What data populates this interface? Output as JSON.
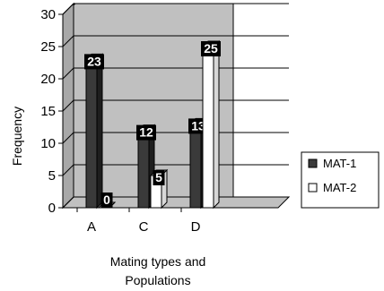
{
  "chart_data": {
    "type": "bar",
    "categories": [
      "A",
      "C",
      "D"
    ],
    "series": [
      {
        "name": "MAT-1",
        "values": [
          23,
          12,
          13
        ],
        "labels": [
          "23",
          "12",
          "13"
        ],
        "color": "#3a3a3a"
      },
      {
        "name": "MAT-2",
        "values": [
          0,
          5,
          25
        ],
        "labels": [
          "0",
          "5",
          "25"
        ],
        "color": "#ffffff"
      }
    ],
    "ylabel": "Frequency",
    "xlabel_lines": [
      "Mating types and",
      "Populations"
    ],
    "ylim": [
      0,
      30
    ],
    "yticks": [
      "0",
      "5",
      "10",
      "15",
      "20",
      "25",
      "30"
    ],
    "grid": true,
    "legend_position": "right",
    "wall_color": "#c0c0c0"
  }
}
